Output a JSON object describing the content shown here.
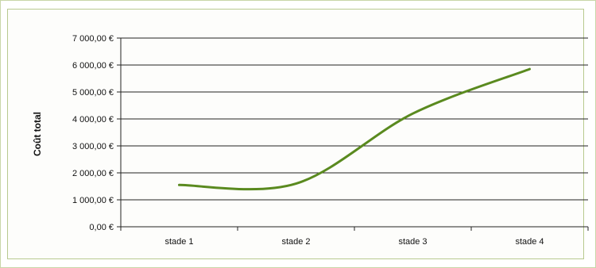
{
  "chart_data": {
    "type": "line",
    "title": "",
    "xlabel": "",
    "ylabel": "Coût total",
    "categories": [
      "stade 1",
      "stade 2",
      "stade 3",
      "stade 4"
    ],
    "series": [
      {
        "values": [
          1550,
          1600,
          4200,
          5850
        ],
        "color": "#5a8a1f",
        "smooth": true
      }
    ],
    "ylim": [
      0,
      7000
    ],
    "yticks": [
      {
        "value": 0,
        "label": "0,00 €"
      },
      {
        "value": 1000,
        "label": "1 000,00 €"
      },
      {
        "value": 2000,
        "label": "2 000,00 €"
      },
      {
        "value": 3000,
        "label": "3 000,00 €"
      },
      {
        "value": 4000,
        "label": "4 000,00 €"
      },
      {
        "value": 5000,
        "label": "5 000,00 €"
      },
      {
        "value": 6000,
        "label": "6 000,00 €"
      },
      {
        "value": 7000,
        "label": "7 000,00 €"
      }
    ],
    "grid": true,
    "legend": "none"
  }
}
